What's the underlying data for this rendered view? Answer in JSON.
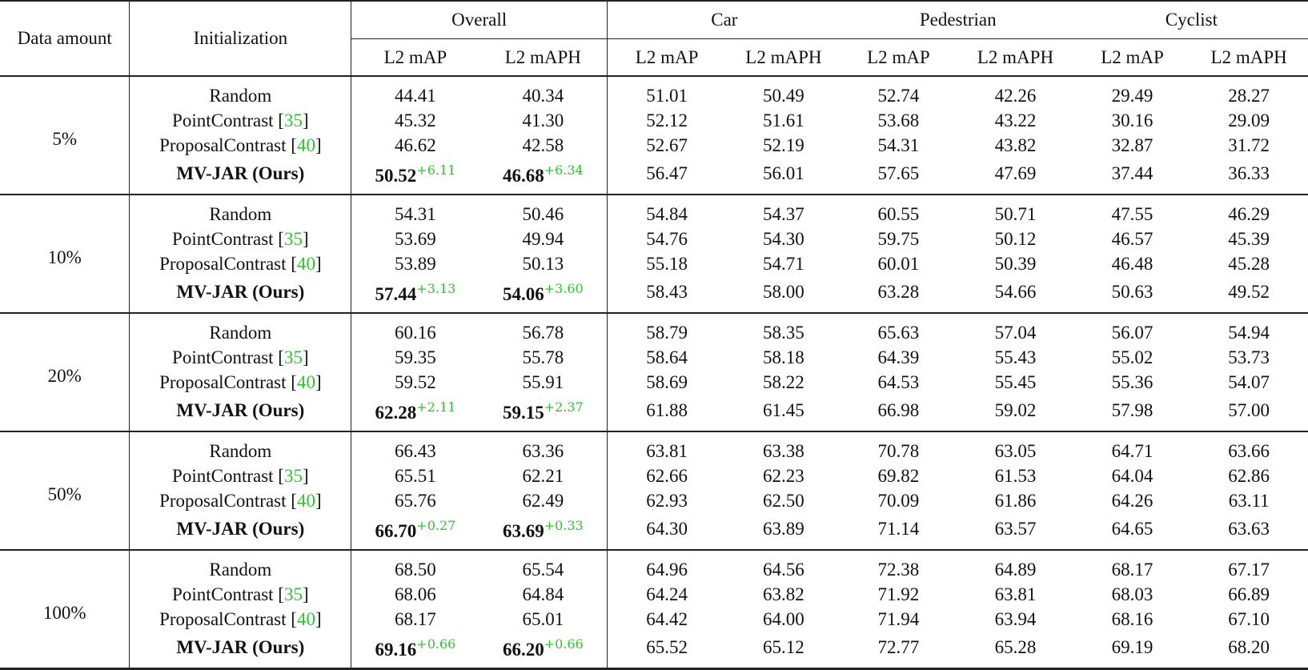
{
  "table": {
    "header": {
      "data_amount": "Data amount",
      "initialization": "Initialization",
      "groups": [
        "Overall",
        "Car",
        "Pedestrian",
        "Cyclist"
      ],
      "metrics": [
        "L2 mAP",
        "L2 mAPH",
        "L2 mAP",
        "L2 mAPH",
        "L2 mAP",
        "L2 mAPH",
        "L2 mAP",
        "L2 mAPH"
      ]
    },
    "accent_color": "#2ec42e",
    "blocks": [
      {
        "amount": "5%",
        "rows": [
          {
            "method": "Random",
            "cite": "",
            "bold": false,
            "values": [
              "44.41",
              "40.34",
              "51.01",
              "50.49",
              "52.74",
              "42.26",
              "29.49",
              "28.27"
            ],
            "gains": [
              "",
              ""
            ]
          },
          {
            "method": "PointContrast",
            "cite": "35",
            "bold": false,
            "values": [
              "45.32",
              "41.30",
              "52.12",
              "51.61",
              "53.68",
              "43.22",
              "30.16",
              "29.09"
            ],
            "gains": [
              "",
              ""
            ]
          },
          {
            "method": "ProposalContrast",
            "cite": "40",
            "bold": false,
            "values": [
              "46.62",
              "42.58",
              "52.67",
              "52.19",
              "54.31",
              "43.82",
              "32.87",
              "31.72"
            ],
            "gains": [
              "",
              ""
            ]
          },
          {
            "method": "MV-JAR (Ours)",
            "cite": "",
            "bold": true,
            "values": [
              "50.52",
              "46.68",
              "56.47",
              "56.01",
              "57.65",
              "47.69",
              "37.44",
              "36.33"
            ],
            "gains": [
              "+6.11",
              "+6.34"
            ]
          }
        ]
      },
      {
        "amount": "10%",
        "rows": [
          {
            "method": "Random",
            "cite": "",
            "bold": false,
            "values": [
              "54.31",
              "50.46",
              "54.84",
              "54.37",
              "60.55",
              "50.71",
              "47.55",
              "46.29"
            ],
            "gains": [
              "",
              ""
            ]
          },
          {
            "method": "PointContrast",
            "cite": "35",
            "bold": false,
            "values": [
              "53.69",
              "49.94",
              "54.76",
              "54.30",
              "59.75",
              "50.12",
              "46.57",
              "45.39"
            ],
            "gains": [
              "",
              ""
            ]
          },
          {
            "method": "ProposalContrast",
            "cite": "40",
            "bold": false,
            "values": [
              "53.89",
              "50.13",
              "55.18",
              "54.71",
              "60.01",
              "50.39",
              "46.48",
              "45.28"
            ],
            "gains": [
              "",
              ""
            ]
          },
          {
            "method": "MV-JAR (Ours)",
            "cite": "",
            "bold": true,
            "values": [
              "57.44",
              "54.06",
              "58.43",
              "58.00",
              "63.28",
              "54.66",
              "50.63",
              "49.52"
            ],
            "gains": [
              "+3.13",
              "+3.60"
            ]
          }
        ]
      },
      {
        "amount": "20%",
        "rows": [
          {
            "method": "Random",
            "cite": "",
            "bold": false,
            "values": [
              "60.16",
              "56.78",
              "58.79",
              "58.35",
              "65.63",
              "57.04",
              "56.07",
              "54.94"
            ],
            "gains": [
              "",
              ""
            ]
          },
          {
            "method": "PointContrast",
            "cite": "35",
            "bold": false,
            "values": [
              "59.35",
              "55.78",
              "58.64",
              "58.18",
              "64.39",
              "55.43",
              "55.02",
              "53.73"
            ],
            "gains": [
              "",
              ""
            ]
          },
          {
            "method": "ProposalContrast",
            "cite": "40",
            "bold": false,
            "values": [
              "59.52",
              "55.91",
              "58.69",
              "58.22",
              "64.53",
              "55.45",
              "55.36",
              "54.07"
            ],
            "gains": [
              "",
              ""
            ]
          },
          {
            "method": "MV-JAR (Ours)",
            "cite": "",
            "bold": true,
            "values": [
              "62.28",
              "59.15",
              "61.88",
              "61.45",
              "66.98",
              "59.02",
              "57.98",
              "57.00"
            ],
            "gains": [
              "+2.11",
              "+2.37"
            ]
          }
        ]
      },
      {
        "amount": "50%",
        "rows": [
          {
            "method": "Random",
            "cite": "",
            "bold": false,
            "values": [
              "66.43",
              "63.36",
              "63.81",
              "63.38",
              "70.78",
              "63.05",
              "64.71",
              "63.66"
            ],
            "gains": [
              "",
              ""
            ]
          },
          {
            "method": "PointContrast",
            "cite": "35",
            "bold": false,
            "values": [
              "65.51",
              "62.21",
              "62.66",
              "62.23",
              "69.82",
              "61.53",
              "64.04",
              "62.86"
            ],
            "gains": [
              "",
              ""
            ]
          },
          {
            "method": "ProposalContrast",
            "cite": "40",
            "bold": false,
            "values": [
              "65.76",
              "62.49",
              "62.93",
              "62.50",
              "70.09",
              "61.86",
              "64.26",
              "63.11"
            ],
            "gains": [
              "",
              ""
            ]
          },
          {
            "method": "MV-JAR (Ours)",
            "cite": "",
            "bold": true,
            "values": [
              "66.70",
              "63.69",
              "64.30",
              "63.89",
              "71.14",
              "63.57",
              "64.65",
              "63.63"
            ],
            "gains": [
              "+0.27",
              "+0.33"
            ]
          }
        ]
      },
      {
        "amount": "100%",
        "rows": [
          {
            "method": "Random",
            "cite": "",
            "bold": false,
            "values": [
              "68.50",
              "65.54",
              "64.96",
              "64.56",
              "72.38",
              "64.89",
              "68.17",
              "67.17"
            ],
            "gains": [
              "",
              ""
            ]
          },
          {
            "method": "PointContrast",
            "cite": "35",
            "bold": false,
            "values": [
              "68.06",
              "64.84",
              "64.24",
              "63.82",
              "71.92",
              "63.81",
              "68.03",
              "66.89"
            ],
            "gains": [
              "",
              ""
            ]
          },
          {
            "method": "ProposalContrast",
            "cite": "40",
            "bold": false,
            "values": [
              "68.17",
              "65.01",
              "64.42",
              "64.00",
              "71.94",
              "63.94",
              "68.16",
              "67.10"
            ],
            "gains": [
              "",
              ""
            ]
          },
          {
            "method": "MV-JAR (Ours)",
            "cite": "",
            "bold": true,
            "values": [
              "69.16",
              "66.20",
              "65.52",
              "65.12",
              "72.77",
              "65.28",
              "69.19",
              "68.20"
            ],
            "gains": [
              "+0.66",
              "+0.66"
            ]
          }
        ]
      }
    ]
  }
}
